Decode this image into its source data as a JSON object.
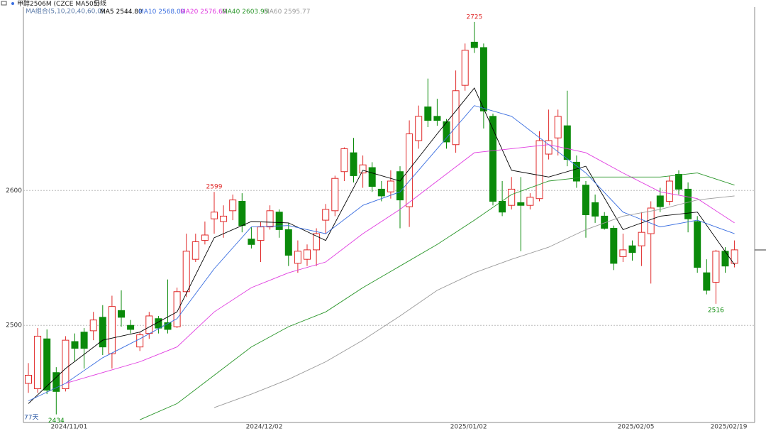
{
  "chart_data": {
    "type": "candlestick",
    "title": "甲醇2506M",
    "subtitle": "(CZCE MA505)",
    "period": "日线",
    "legend_title": "MA组合(5,10,20,40,60,0)",
    "days_label": "77天",
    "categories": [
      null,
      null,
      null,
      null,
      "2024/11/01",
      null,
      null,
      null,
      null,
      null,
      null,
      null,
      null,
      null,
      null,
      null,
      null,
      null,
      null,
      null,
      null,
      null,
      null,
      null,
      null,
      "2024/12/02",
      null,
      null,
      null,
      null,
      null,
      null,
      null,
      null,
      null,
      null,
      null,
      null,
      null,
      null,
      null,
      null,
      null,
      null,
      null,
      null,
      null,
      "2025/01/02",
      null,
      null,
      null,
      null,
      null,
      null,
      null,
      null,
      null,
      null,
      null,
      null,
      null,
      null,
      null,
      null,
      null,
      "2025/02/05",
      null,
      null,
      null,
      null,
      null,
      null,
      null,
      null,
      null,
      "2025/02/19",
      null
    ],
    "open": [
      2457,
      2453,
      2490,
      2465,
      2453,
      2488,
      2495,
      2496,
      2506,
      2479,
      2511,
      2500,
      2484,
      2494,
      2505,
      2502,
      2499,
      2525,
      2549,
      2563,
      2579,
      2577,
      2585,
      2592,
      2564,
      2563,
      2573,
      2584,
      2571,
      2546,
      2549,
      2556,
      2578,
      2585,
      2614,
      2628,
      2613,
      2617,
      2601,
      2599,
      2614,
      2588,
      2637,
      2662,
      2655,
      2651,
      2634,
      2678,
      2710,
      2706,
      2655,
      2592,
      2589,
      2591,
      2589,
      2594,
      2627,
      2639,
      2648,
      2621,
      2604,
      2591,
      2581,
      2572,
      2551,
      2559,
      2559,
      2568,
      2596,
      2592,
      2612,
      2601,
      2577,
      2539,
      2532,
      2555,
      2546
    ],
    "high": [
      2472,
      2498,
      2497,
      2469,
      2492,
      2494,
      2498,
      2510,
      2515,
      2522,
      2526,
      2504,
      2495,
      2510,
      2507,
      2534,
      2528,
      2568,
      2568,
      2577,
      2599,
      2589,
      2597,
      2598,
      2573,
      2577,
      2589,
      2586,
      2576,
      2563,
      2560,
      2572,
      2590,
      2611,
      2632,
      2639,
      2626,
      2621,
      2607,
      2615,
      2618,
      2652,
      2663,
      2683,
      2668,
      2653,
      2689,
      2709,
      2725,
      2709,
      2657,
      2607,
      2610,
      2610,
      2598,
      2644,
      2660,
      2660,
      2674,
      2626,
      2607,
      2597,
      2584,
      2574,
      2568,
      2563,
      2584,
      2592,
      2602,
      2611,
      2615,
      2606,
      2581,
      2549,
      2556,
      2558,
      2563
    ],
    "low": [
      2450,
      2450,
      2449,
      2434,
      2451,
      2473,
      2468,
      2489,
      2478,
      2468,
      2499,
      2494,
      2481,
      2490,
      2494,
      2494,
      2498,
      2521,
      2547,
      2560,
      2568,
      2565,
      2578,
      2569,
      2557,
      2547,
      2571,
      2565,
      2544,
      2539,
      2544,
      2544,
      2568,
      2581,
      2607,
      2606,
      2602,
      2599,
      2592,
      2594,
      2572,
      2573,
      2631,
      2647,
      2648,
      2631,
      2628,
      2674,
      2702,
      2646,
      2589,
      2581,
      2586,
      2555,
      2586,
      2592,
      2623,
      2626,
      2618,
      2602,
      2565,
      2576,
      2571,
      2541,
      2547,
      2548,
      2544,
      2531,
      2584,
      2589,
      2597,
      2569,
      2539,
      2523,
      2516,
      2539,
      2543
    ],
    "close": [
      2463,
      2492,
      2452,
      2451,
      2489,
      2483,
      2483,
      2504,
      2484,
      2514,
      2506,
      2497,
      2493,
      2507,
      2498,
      2497,
      2525,
      2555,
      2562,
      2567,
      2584,
      2581,
      2593,
      2574,
      2560,
      2573,
      2585,
      2571,
      2552,
      2555,
      2556,
      2568,
      2586,
      2609,
      2631,
      2611,
      2619,
      2603,
      2596,
      2607,
      2593,
      2642,
      2655,
      2652,
      2652,
      2636,
      2674,
      2704,
      2706,
      2659,
      2592,
      2584,
      2601,
      2589,
      2595,
      2637,
      2637,
      2655,
      2623,
      2607,
      2582,
      2581,
      2572,
      2546,
      2556,
      2554,
      2569,
      2587,
      2588,
      2607,
      2601,
      2579,
      2543,
      2526,
      2555,
      2544,
      2556
    ],
    "up_color": "#e02828",
    "down_color": "#0a8a0a",
    "series": [
      {
        "name": "MA5",
        "color": "#000000",
        "legend_value": {
          "value": 2544.8,
          "label": "2544.80"
        },
        "x": [
          0,
          4,
          8,
          12,
          16,
          20,
          24,
          28,
          32,
          36,
          40,
          44,
          48,
          52,
          56,
          60,
          64,
          68,
          72,
          76
        ],
        "values": [
          2442,
          2468,
          2489,
          2495,
          2510,
          2565,
          2577,
          2576,
          2563,
          2615,
          2607,
          2642,
          2676,
          2615,
          2610,
          2618,
          2571,
          2581,
          2584,
          2545
        ]
      },
      {
        "name": "MA10",
        "color": "#3a6ee0",
        "legend_value": {
          "value": 2568,
          "label": "2568.00"
        },
        "x": [
          0,
          4,
          8,
          12,
          16,
          20,
          24,
          28,
          32,
          36,
          40,
          44,
          48,
          52,
          56,
          60,
          64,
          68,
          72,
          76
        ],
        "values": [
          2444,
          2457,
          2476,
          2490,
          2505,
          2542,
          2573,
          2574,
          2568,
          2589,
          2599,
          2631,
          2663,
          2655,
          2634,
          2613,
          2584,
          2573,
          2578,
          2568
        ]
      },
      {
        "name": "MA20",
        "color": "#e03ce0",
        "legend_value": {
          "value": 2576.6,
          "label": "2576.60"
        },
        "x": [
          4,
          8,
          12,
          16,
          20,
          24,
          28,
          32,
          36,
          40,
          44,
          48,
          52,
          56,
          60,
          64,
          68,
          72,
          76
        ],
        "values": [
          2457,
          2465,
          2473,
          2484,
          2510,
          2528,
          2539,
          2547,
          2568,
          2586,
          2607,
          2628,
          2631,
          2634,
          2628,
          2613,
          2599,
          2594,
          2576
        ]
      },
      {
        "name": "MA40",
        "color": "#2a962a",
        "legend_value": {
          "value": 2603.95,
          "label": "2603.95"
        },
        "x": [
          12,
          16,
          20,
          24,
          28,
          32,
          36,
          40,
          44,
          48,
          52,
          56,
          60,
          64,
          68,
          72,
          76
        ],
        "values": [
          2430,
          2442,
          2463,
          2484,
          2499,
          2510,
          2528,
          2544,
          2560,
          2578,
          2597,
          2607,
          2610,
          2610,
          2610,
          2613,
          2604
        ]
      },
      {
        "name": "MA60",
        "color": "#999999",
        "legend_value": {
          "value": 2595.77,
          "label": "2595.77"
        },
        "x": [
          20,
          24,
          28,
          32,
          36,
          40,
          44,
          48,
          52,
          56,
          60,
          64,
          68,
          72,
          76
        ],
        "values": [
          2439,
          2449,
          2460,
          2473,
          2489,
          2507,
          2526,
          2539,
          2549,
          2558,
          2571,
          2581,
          2586,
          2593,
          2596
        ]
      }
    ],
    "annotations": [
      {
        "value": 2599,
        "at": 20,
        "side": "high",
        "color": "#e02828"
      },
      {
        "value": 2725,
        "at": 48,
        "side": "high",
        "color": "#e02828"
      },
      {
        "value": 2434,
        "at": 3,
        "side": "low",
        "color": "#0a8a0a"
      },
      {
        "value": 2516,
        "at": 74,
        "side": "low",
        "color": "#0a8a0a"
      }
    ],
    "ylim": [
      2428,
      2736
    ],
    "yticks": [
      2500,
      2600
    ],
    "grid": true
  }
}
